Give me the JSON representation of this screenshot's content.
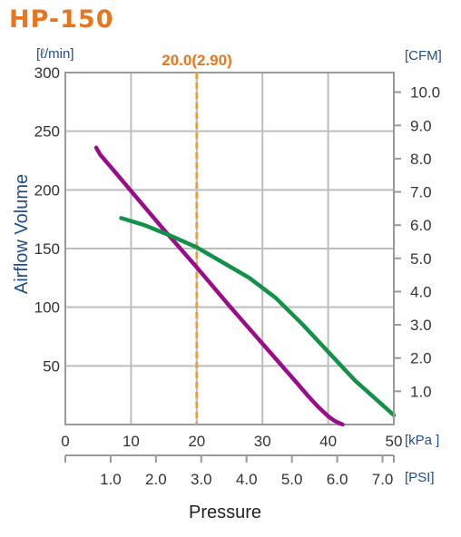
{
  "title": "HP-150",
  "colors": {
    "title": "#e8761e",
    "axis_text": "#333333",
    "unit_text": "#1f4e8c",
    "grid": "#bdbdbd",
    "marker": "#f0a030",
    "marker_text": "#e8761e",
    "series_a": "#990d8a",
    "series_b": "#13914a"
  },
  "chart_data": {
    "type": "line",
    "title": "HP-150",
    "xlabel": "Pressure",
    "ylabel": "Airflow Volume",
    "x_unit": "[kPa ]",
    "x2_unit": "[PSI]",
    "y_unit": "[ℓ/min]",
    "y2_unit": "[CFM]",
    "xlim": [
      0,
      50
    ],
    "ylim": [
      0,
      300
    ],
    "x_ticks": [
      0,
      10,
      20,
      30,
      40,
      50
    ],
    "y_ticks": [
      50,
      100,
      150,
      200,
      250,
      300
    ],
    "x2_ticks": [
      "1.0",
      "2.0",
      "3.0",
      "4.0",
      "5.0",
      "6.0",
      "7.0"
    ],
    "x2_tick_values": [
      1.0,
      2.0,
      3.0,
      4.0,
      5.0,
      6.0,
      7.0
    ],
    "psi_per_kpa": 0.145,
    "y2_ticks": [
      "1.0",
      "2.0",
      "3.0",
      "4.0",
      "5.0",
      "6.0",
      "7.0",
      "8.0",
      "9.0",
      "10.0"
    ],
    "y2_tick_values": [
      1.0,
      2.0,
      3.0,
      4.0,
      5.0,
      6.0,
      7.0,
      8.0,
      9.0,
      10.0
    ],
    "cfm_per_lmin": 0.0353,
    "grid": true,
    "marker": {
      "x": 20.0,
      "label": "20.0(2.90)"
    },
    "series": [
      {
        "color": "#990d8a",
        "x": [
          4.7,
          5.3,
          7,
          10,
          15,
          20,
          25,
          30,
          35,
          37,
          38.5,
          40,
          41,
          42.2
        ],
        "y": [
          236,
          230,
          219,
          199,
          166,
          134,
          101,
          69,
          37,
          24,
          15,
          7,
          3,
          0
        ]
      },
      {
        "color": "#13914a",
        "x": [
          8.5,
          12,
          16,
          20,
          24,
          28,
          32,
          36,
          40,
          44,
          47,
          50
        ],
        "y": [
          176,
          170,
          161,
          151,
          138,
          125,
          108,
          86,
          62,
          38,
          23,
          8
        ]
      }
    ]
  }
}
